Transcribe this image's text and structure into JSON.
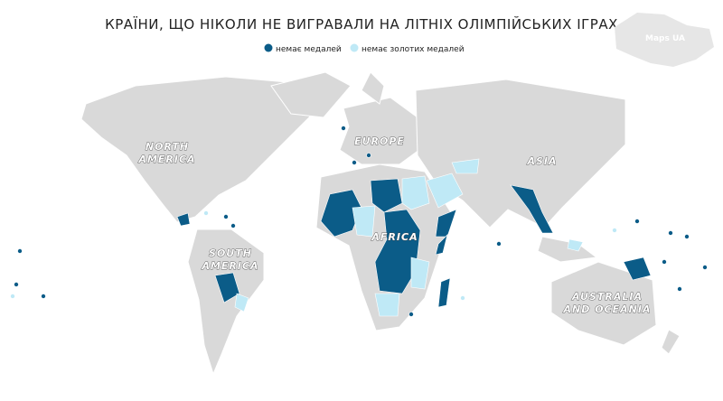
{
  "title": "КРАЇНИ, ЩО НІКОЛИ НЕ ВИГРАВАЛИ НА ЛІТНІХ ОЛІМПІЙСЬКИХ ІГРАХ",
  "legend": [
    {
      "label": "немає медалей",
      "color": "#0b5c88"
    },
    {
      "label": "немає золотих медалей",
      "color": "#bfe9f6"
    }
  ],
  "regions": [
    [
      "NORTH",
      "AMERICA"
    ],
    [
      "EUROPE"
    ],
    [
      "ASIA"
    ],
    [
      "AFRICA"
    ],
    [
      "SOUTH",
      "AMERICA"
    ],
    [
      "AUSTRALIA",
      "AND OCEANIA"
    ]
  ],
  "watermark": "Maps UA"
}
